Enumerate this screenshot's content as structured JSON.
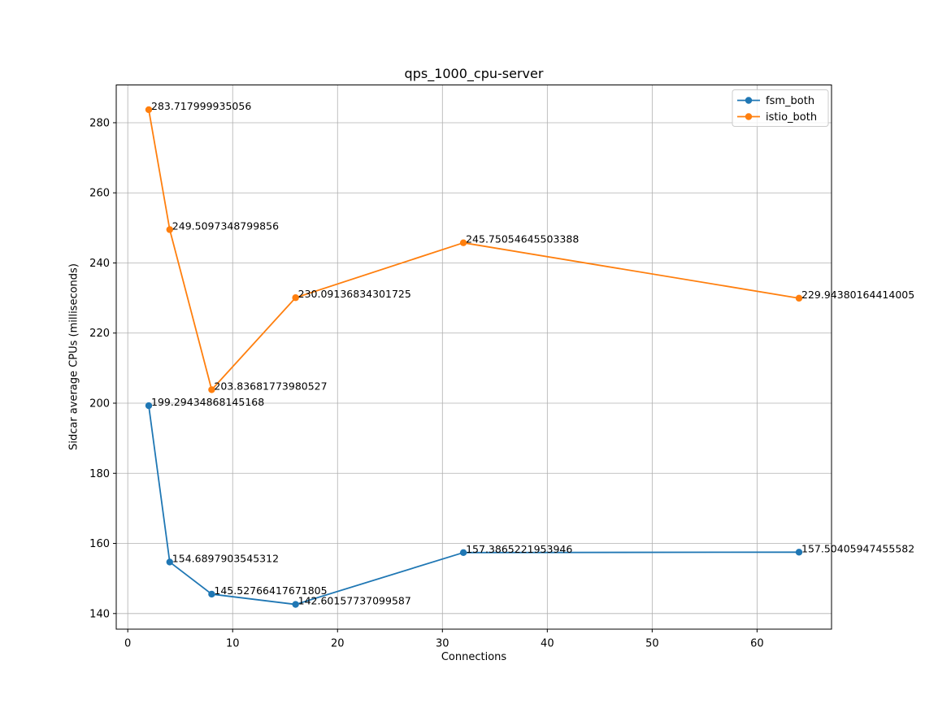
{
  "figure": {
    "background": "#ffffff"
  },
  "chart_data": {
    "type": "line",
    "title": "qps_1000_cpu-server",
    "xlabel": "Connections",
    "ylabel": "Sidcar average CPUs (milliseconds)",
    "x": [
      2,
      4,
      8,
      16,
      32,
      64
    ],
    "series": [
      {
        "name": "fsm_both",
        "color": "#1f77b4",
        "values": [
          199.29434868145168,
          154.6897903545312,
          145.52766417671805,
          142.60157737099587,
          157.3865221953946,
          157.50405947455582
        ],
        "point_labels": [
          "199.29434868145168",
          "154.6897903545312",
          "145.52766417671805",
          "142.60157737099587",
          "157.3865221953946",
          "157.50405947455582"
        ]
      },
      {
        "name": "istio_both",
        "color": "#ff7f0e",
        "values": [
          283.717999935056,
          249.5097348799856,
          203.83681773980527,
          230.09136834301725,
          245.75054645503388,
          229.94380164414005
        ],
        "point_labels": [
          "283.717999935056",
          "249.5097348799856",
          "203.83681773980527",
          "230.09136834301725",
          "245.75054645503388",
          "229.94380164414005"
        ]
      }
    ],
    "xlim": [
      -1.1,
      67.1
    ],
    "ylim": [
      135.546,
      290.774
    ],
    "xticks": [
      0,
      10,
      20,
      30,
      40,
      50,
      60
    ],
    "yticks": [
      140,
      160,
      180,
      200,
      220,
      240,
      260,
      280
    ],
    "grid": true,
    "grid_color": "#b0b0b0",
    "axes_edge_color": "#000000",
    "marker": "circle",
    "legend": {
      "position": "upper right",
      "entries": [
        "fsm_both",
        "istio_both"
      ]
    }
  }
}
